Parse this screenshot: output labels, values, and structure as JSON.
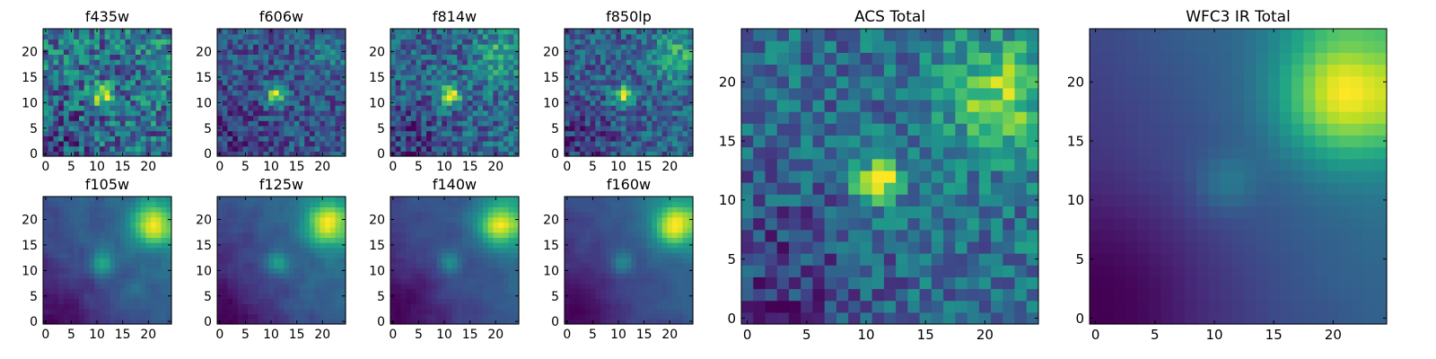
{
  "chart_data": [
    {
      "type": "heatmap",
      "title": "f435w",
      "colormap": "viridis",
      "xlim": [
        0,
        25
      ],
      "ylim": [
        0,
        25
      ],
      "xticks": [
        "0",
        "5",
        "10",
        "15",
        "20"
      ],
      "yticks": [
        "0",
        "5",
        "10",
        "15",
        "20"
      ],
      "grid": false
    },
    {
      "type": "heatmap",
      "title": "f606w",
      "colormap": "viridis",
      "xlim": [
        0,
        25
      ],
      "ylim": [
        0,
        25
      ],
      "xticks": [
        "0",
        "5",
        "10",
        "15",
        "20"
      ],
      "yticks": [
        "0",
        "5",
        "10",
        "15",
        "20"
      ],
      "grid": false
    },
    {
      "type": "heatmap",
      "title": "f814w",
      "colormap": "viridis",
      "xlim": [
        0,
        25
      ],
      "ylim": [
        0,
        25
      ],
      "xticks": [
        "0",
        "5",
        "10",
        "15",
        "20"
      ],
      "yticks": [
        "0",
        "5",
        "10",
        "15",
        "20"
      ],
      "grid": false
    },
    {
      "type": "heatmap",
      "title": "f850lp",
      "colormap": "viridis",
      "xlim": [
        0,
        25
      ],
      "ylim": [
        0,
        25
      ],
      "xticks": [
        "0",
        "5",
        "10",
        "15",
        "20"
      ],
      "yticks": [
        "0",
        "5",
        "10",
        "15",
        "20"
      ],
      "grid": false
    },
    {
      "type": "heatmap",
      "title": "f105w",
      "colormap": "viridis",
      "xlim": [
        0,
        25
      ],
      "ylim": [
        0,
        25
      ],
      "xticks": [
        "0",
        "5",
        "10",
        "15",
        "20"
      ],
      "yticks": [
        "0",
        "5",
        "10",
        "15",
        "20"
      ],
      "grid": false
    },
    {
      "type": "heatmap",
      "title": "f125w",
      "colormap": "viridis",
      "xlim": [
        0,
        25
      ],
      "ylim": [
        0,
        25
      ],
      "xticks": [
        "0",
        "5",
        "10",
        "15",
        "20"
      ],
      "yticks": [
        "0",
        "5",
        "10",
        "15",
        "20"
      ],
      "grid": false
    },
    {
      "type": "heatmap",
      "title": "f140w",
      "colormap": "viridis",
      "xlim": [
        0,
        25
      ],
      "ylim": [
        0,
        25
      ],
      "xticks": [
        "0",
        "5",
        "10",
        "15",
        "20"
      ],
      "yticks": [
        "0",
        "5",
        "10",
        "15",
        "20"
      ],
      "grid": false
    },
    {
      "type": "heatmap",
      "title": "f160w",
      "colormap": "viridis",
      "xlim": [
        0,
        25
      ],
      "ylim": [
        0,
        25
      ],
      "xticks": [
        "0",
        "5",
        "10",
        "15",
        "20"
      ],
      "yticks": [
        "0",
        "5",
        "10",
        "15",
        "20"
      ],
      "grid": false
    },
    {
      "type": "heatmap",
      "title": "ACS Total",
      "colormap": "viridis",
      "xlim": [
        0,
        25
      ],
      "ylim": [
        0,
        25
      ],
      "xticks": [
        "0",
        "5",
        "10",
        "15",
        "20"
      ],
      "yticks": [
        "0",
        "5",
        "10",
        "15",
        "20"
      ],
      "grid": false
    },
    {
      "type": "heatmap",
      "title": "WFC3 IR Total",
      "colormap": "viridis",
      "xlim": [
        0,
        25
      ],
      "ylim": [
        0,
        25
      ],
      "xticks": [
        "0",
        "5",
        "10",
        "15",
        "20"
      ],
      "yticks": [
        "0",
        "5",
        "10",
        "15",
        "20"
      ],
      "grid": false
    }
  ],
  "sources": {
    "compact_source": {
      "x": 11,
      "y": 11.5
    },
    "bright_source": {
      "x": 21,
      "y": 19
    }
  }
}
